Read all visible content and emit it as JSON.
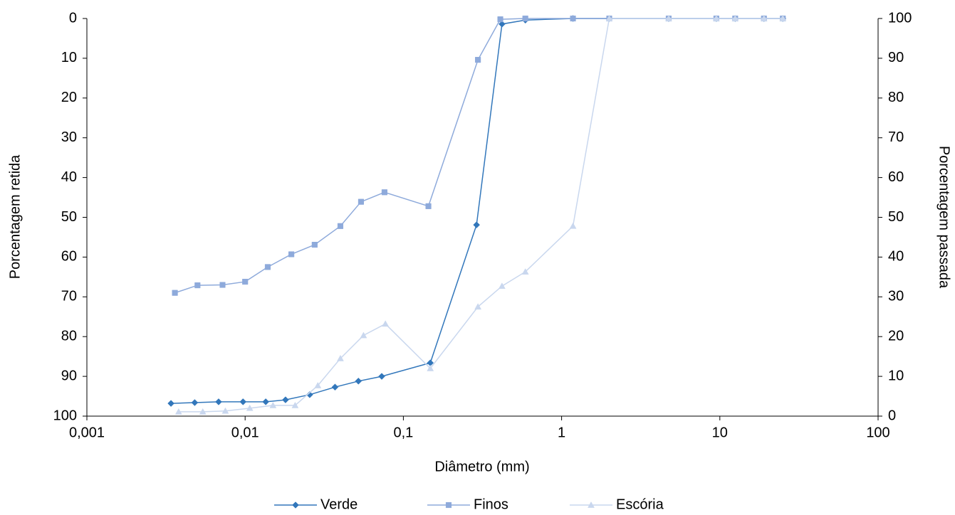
{
  "chart_data": {
    "type": "line",
    "x_label": "Diâmetro (mm)",
    "y_label": "Porcentagem retida",
    "y2_label": "Porcentagem passada",
    "xscale": "log",
    "xlim": [
      0.001,
      100
    ],
    "xticks": [
      {
        "value": 0.001,
        "label": "0,001"
      },
      {
        "value": 0.01,
        "label": "0,01"
      },
      {
        "value": 0.1,
        "label": "0,1"
      },
      1,
      10,
      100
    ],
    "ylim": [
      100,
      0
    ],
    "yticks": [
      0,
      10,
      20,
      30,
      40,
      50,
      60,
      70,
      80,
      90,
      100
    ],
    "y2lim": [
      0,
      100
    ],
    "y2ticks": [
      0,
      10,
      20,
      30,
      40,
      50,
      60,
      70,
      80,
      90,
      100
    ],
    "legend": "bottom",
    "series": [
      {
        "name": "Verde",
        "color": "#3277bb",
        "marker": "diamond",
        "axis": "y2",
        "x": [
          0.0034,
          0.0048,
          0.0068,
          0.0097,
          0.0135,
          0.018,
          0.0256,
          0.037,
          0.052,
          0.073,
          0.148,
          0.29,
          0.42,
          0.59,
          1.18,
          2,
          4.75,
          9.5,
          12.5,
          19,
          25
        ],
        "values": [
          3.2,
          3.4,
          3.6,
          3.6,
          3.6,
          4.1,
          5.4,
          7.3,
          8.8,
          10,
          13.4,
          48.1,
          98.6,
          99.6,
          100,
          100,
          100,
          100,
          100,
          100,
          100
        ]
      },
      {
        "name": "Finos",
        "color": "#8eaadb",
        "marker": "square",
        "axis": "y2",
        "x": [
          0.0036,
          0.005,
          0.0072,
          0.01,
          0.0139,
          0.0196,
          0.0275,
          0.04,
          0.054,
          0.076,
          0.144,
          0.296,
          0.41,
          0.59,
          1.18,
          2,
          4.75,
          9.5,
          12.5,
          19,
          25
        ],
        "values": [
          31,
          32.9,
          33,
          33.8,
          37.5,
          40.7,
          43.1,
          47.8,
          53.9,
          56.3,
          52.8,
          89.6,
          99.8,
          100,
          100,
          100,
          100,
          100,
          100,
          100,
          100
        ]
      },
      {
        "name": "Escória",
        "color": "#c9d7ee",
        "marker": "triangle",
        "axis": "y2",
        "x": [
          0.0038,
          0.0054,
          0.0075,
          0.0107,
          0.015,
          0.0207,
          0.0288,
          0.04,
          0.056,
          0.077,
          0.148,
          0.296,
          0.42,
          0.59,
          1.18,
          2,
          4.75,
          9.5,
          12.5,
          19,
          25
        ],
        "values": [
          1.1,
          1.1,
          1.3,
          2,
          2.7,
          2.7,
          7.7,
          14.5,
          20.3,
          23.2,
          12,
          27.5,
          32.7,
          36.3,
          47.8,
          100,
          100,
          100,
          100,
          100,
          100
        ]
      }
    ]
  }
}
